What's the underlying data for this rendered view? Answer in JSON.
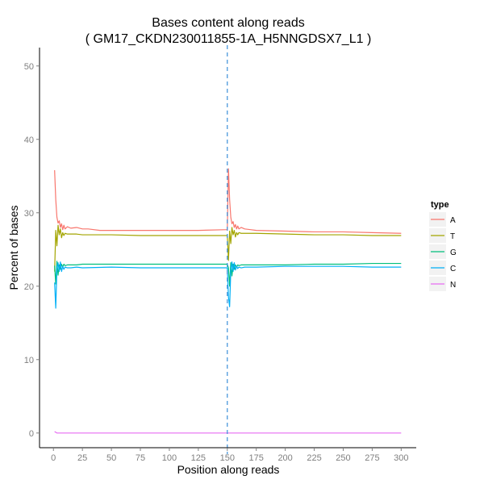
{
  "chart_data": {
    "type": "line",
    "title": "Bases content along reads",
    "subtitle": "( GM17_CKDN230011855-1A_H5NNGDSX7_L1 )",
    "xlabel": "Position along reads",
    "ylabel": "Percent of bases",
    "xlim": [
      -12,
      313
    ],
    "ylim": [
      -2,
      52.5
    ],
    "xticks": [
      0,
      25,
      50,
      75,
      100,
      125,
      150,
      175,
      200,
      225,
      250,
      275,
      300
    ],
    "yticks": [
      0,
      10,
      20,
      30,
      40,
      50
    ],
    "vline": 150,
    "grid": false,
    "legend": {
      "title": "type",
      "position": "right"
    },
    "colors": {
      "A": "#f8766d",
      "T": "#a3a500",
      "G": "#00bf7d",
      "C": "#00b0f6",
      "N": "#e76bf3",
      "vline": "#3b8fd9",
      "axis": "#000000",
      "legend_key_bg": "#f2f2f2"
    },
    "series": [
      {
        "name": "A",
        "x": [
          1,
          2,
          3,
          4,
          5,
          6,
          7,
          8,
          9,
          10,
          12,
          15,
          20,
          25,
          30,
          40,
          50,
          75,
          100,
          125,
          150,
          151,
          152,
          153,
          154,
          155,
          156,
          157,
          158,
          159,
          160,
          162,
          165,
          170,
          175,
          200,
          225,
          250,
          275,
          300
        ],
        "y": [
          35.8,
          31.8,
          29.4,
          28.6,
          28.9,
          28.0,
          28.5,
          27.7,
          28.3,
          27.8,
          28.1,
          27.9,
          28.0,
          27.8,
          27.8,
          27.6,
          27.6,
          27.6,
          27.6,
          27.6,
          27.7,
          36.0,
          31.8,
          29.4,
          28.5,
          28.8,
          28.0,
          28.4,
          27.8,
          28.2,
          27.8,
          28.0,
          27.8,
          27.7,
          27.6,
          27.5,
          27.4,
          27.4,
          27.3,
          27.2
        ]
      },
      {
        "name": "T",
        "x": [
          1,
          2,
          3,
          4,
          5,
          6,
          7,
          8,
          9,
          10,
          12,
          15,
          20,
          25,
          50,
          75,
          100,
          125,
          150,
          151,
          152,
          153,
          154,
          155,
          156,
          157,
          158,
          159,
          160,
          162,
          165,
          175,
          200,
          225,
          250,
          275,
          300
        ],
        "y": [
          22.0,
          27.6,
          25.5,
          28.3,
          27.0,
          27.8,
          26.6,
          27.3,
          26.9,
          27.2,
          27.1,
          27.1,
          27.1,
          27.0,
          27.0,
          26.9,
          26.9,
          26.9,
          26.9,
          23.5,
          27.5,
          25.8,
          28.0,
          27.0,
          27.6,
          26.7,
          27.3,
          27.0,
          27.3,
          27.2,
          27.2,
          27.2,
          27.1,
          27.0,
          27.0,
          26.9,
          26.9
        ]
      },
      {
        "name": "G",
        "x": [
          1,
          2,
          3,
          4,
          5,
          6,
          7,
          8,
          9,
          10,
          12,
          15,
          20,
          25,
          50,
          75,
          100,
          125,
          150,
          151,
          152,
          153,
          154,
          155,
          156,
          157,
          158,
          159,
          160,
          162,
          165,
          175,
          200,
          225,
          250,
          275,
          300
        ],
        "y": [
          22.8,
          20.3,
          23.4,
          21.5,
          22.9,
          22.3,
          23.0,
          22.6,
          23.0,
          22.8,
          22.9,
          22.9,
          22.9,
          23.0,
          23.0,
          23.0,
          23.0,
          23.0,
          23.0,
          22.5,
          20.0,
          23.2,
          21.4,
          23.0,
          22.3,
          22.9,
          22.6,
          22.9,
          22.8,
          22.9,
          22.9,
          22.9,
          22.9,
          23.0,
          23.0,
          23.1,
          23.1
        ]
      },
      {
        "name": "C",
        "x": [
          1,
          2,
          3,
          4,
          5,
          6,
          7,
          8,
          9,
          10,
          12,
          15,
          20,
          25,
          50,
          75,
          100,
          125,
          150,
          151,
          152,
          153,
          154,
          155,
          156,
          157,
          158,
          159,
          160,
          162,
          165,
          175,
          200,
          225,
          250,
          275,
          300
        ],
        "y": [
          20.5,
          17.0,
          22.4,
          23.2,
          22.0,
          23.3,
          22.0,
          22.7,
          22.3,
          22.6,
          22.5,
          22.5,
          22.6,
          22.5,
          22.6,
          22.5,
          22.5,
          22.5,
          22.5,
          18.5,
          17.2,
          22.0,
          23.3,
          22.0,
          23.2,
          22.2,
          22.7,
          22.4,
          22.6,
          22.5,
          22.6,
          22.6,
          22.7,
          22.7,
          22.7,
          22.6,
          22.6
        ]
      },
      {
        "name": "N",
        "x": [
          1,
          2,
          3,
          4,
          5,
          10,
          25,
          50,
          100,
          150,
          151,
          200,
          250,
          300
        ],
        "y": [
          0.2,
          0.1,
          0.0,
          0.0,
          0.0,
          0.0,
          0.0,
          0.0,
          0.0,
          0.0,
          0.0,
          0.0,
          0.0,
          0.0
        ]
      }
    ]
  }
}
